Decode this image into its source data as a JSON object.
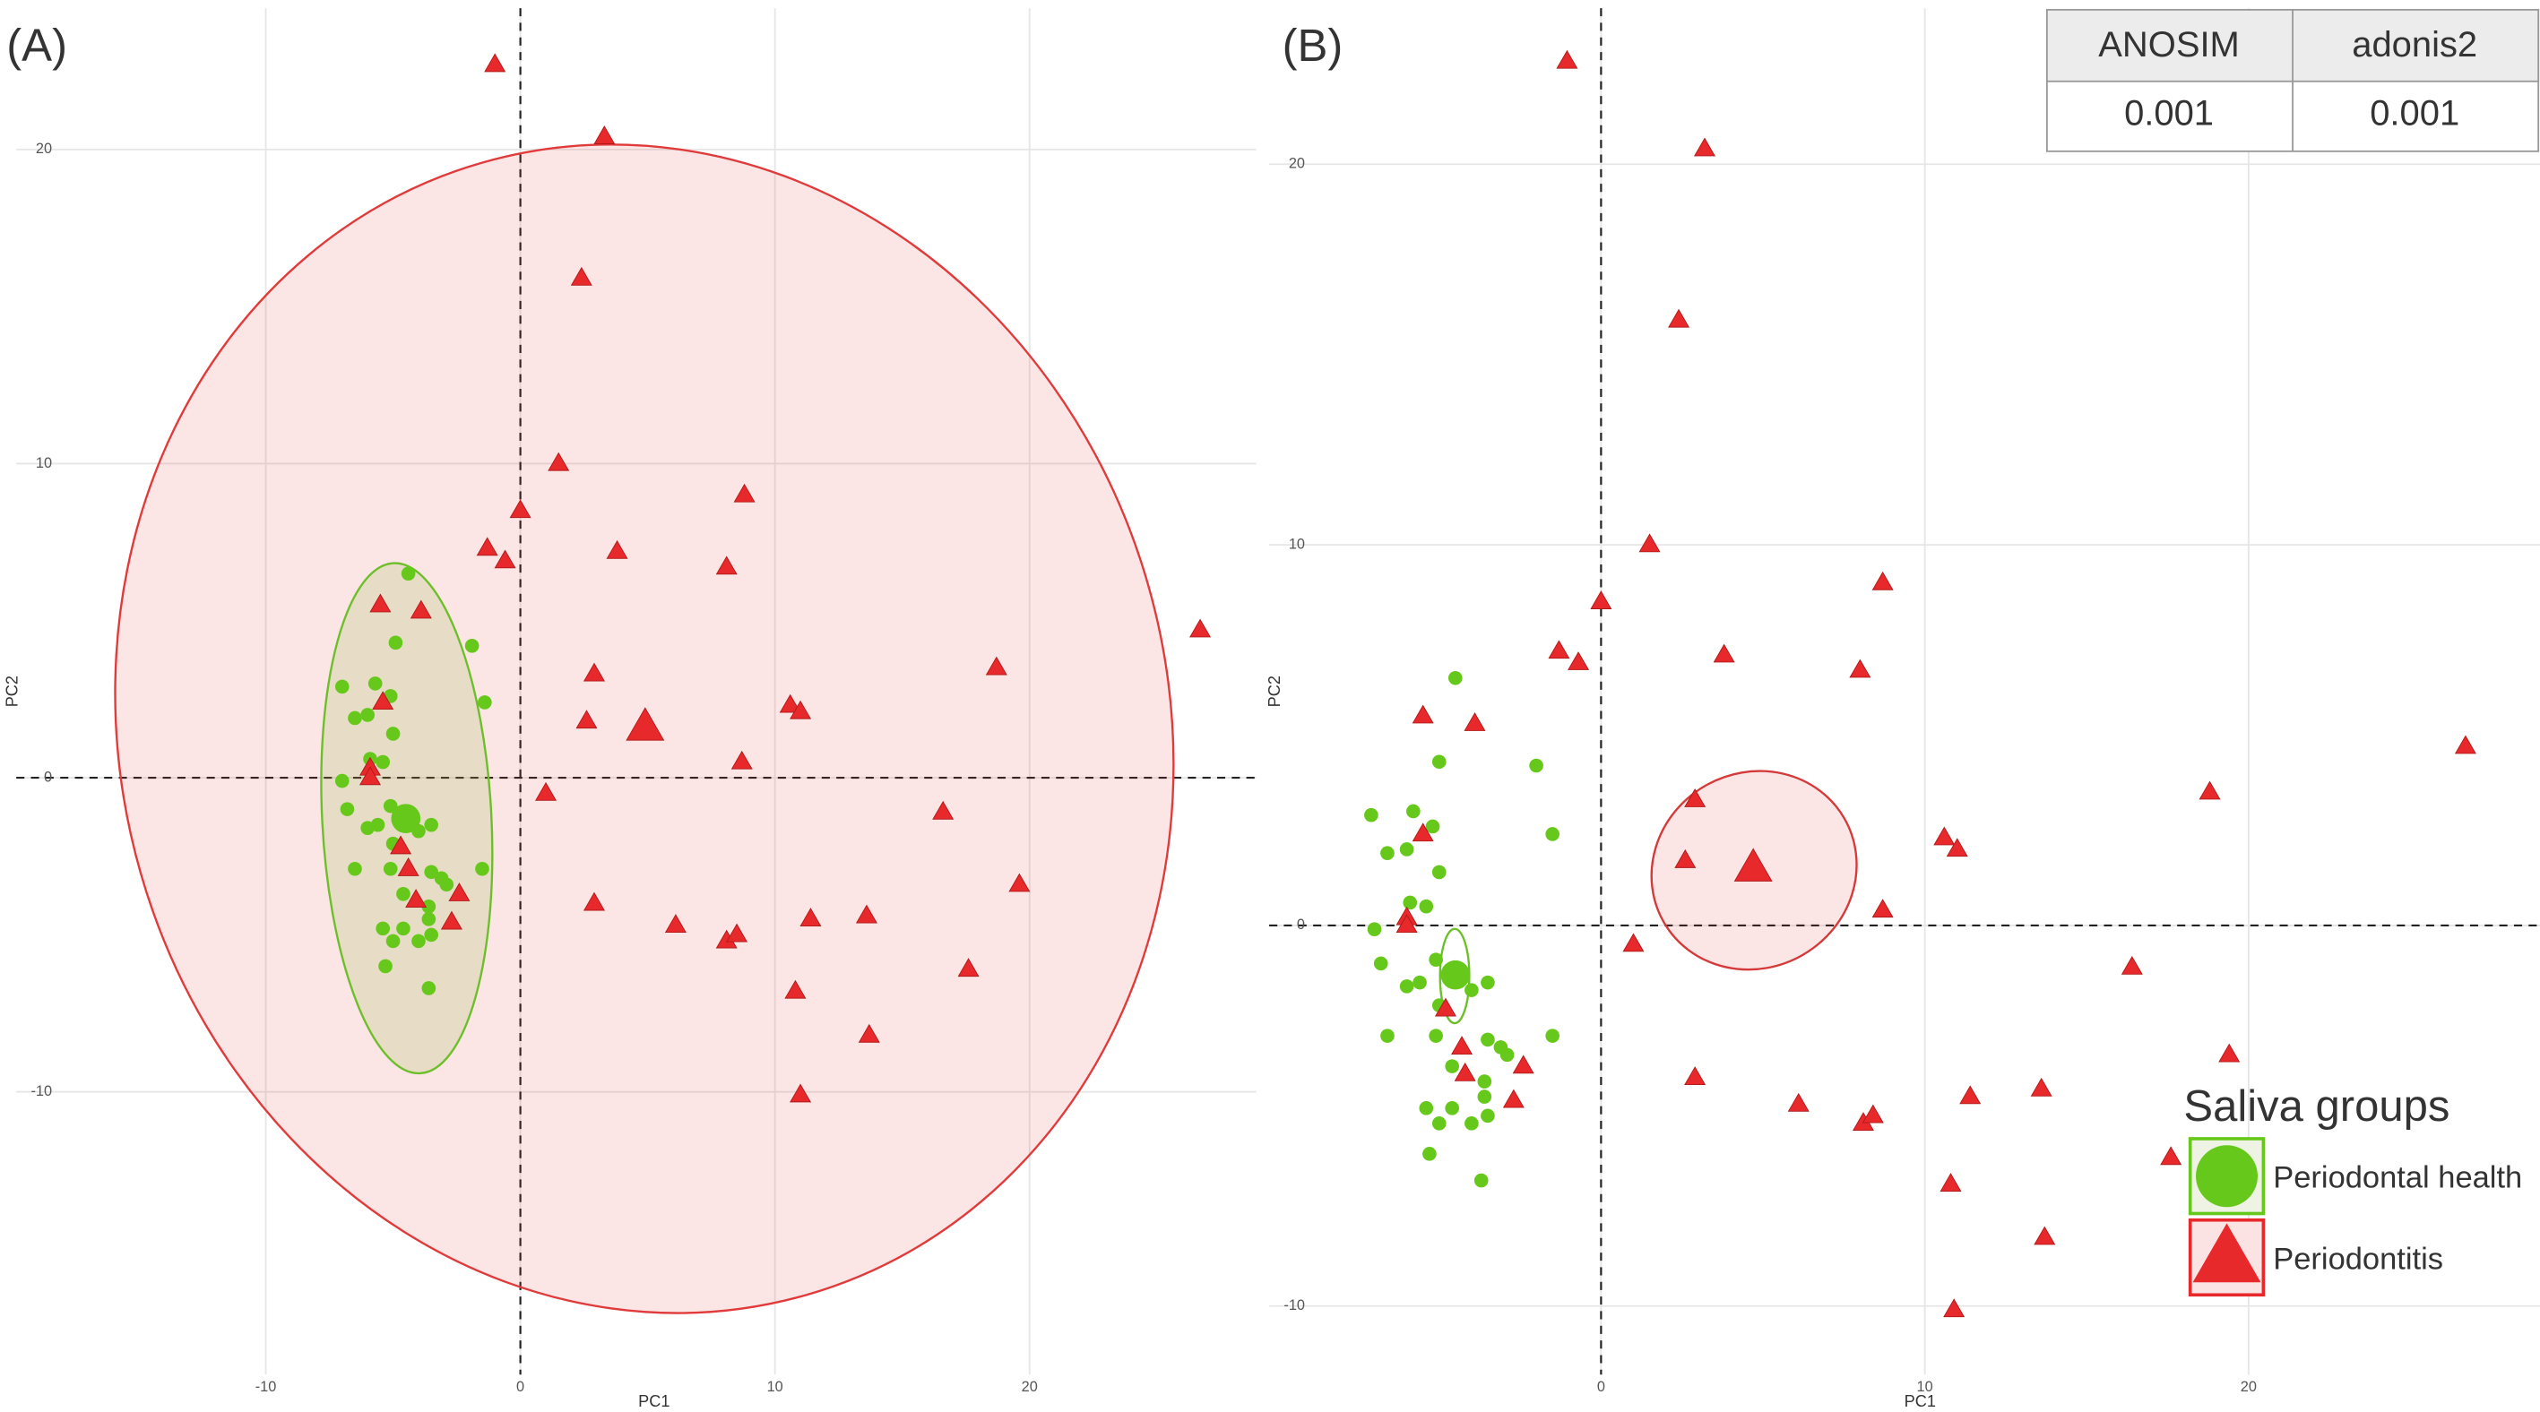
{
  "chart_data": [
    {
      "type": "scatter",
      "panel_label": "(A)",
      "x_label": "PC1",
      "y_label": "PC2",
      "xlim": [
        -19.8,
        28.9
      ],
      "ylim": [
        -19.0,
        24.5
      ],
      "xticks": [
        -10,
        0,
        10,
        20
      ],
      "yticks": [
        -10,
        0,
        10,
        20
      ],
      "grid": true,
      "zero_lines": true,
      "series": [
        {
          "name": "Periodontal health",
          "color": "#66c81a",
          "marker": "circle",
          "x": [
            -4.4,
            -1.9,
            -4.9,
            -1.4,
            -7.0,
            -5.7,
            -5.1,
            -6.5,
            -6.0,
            -5.0,
            -5.9,
            -5.4,
            -7.0,
            -6.8,
            -5.1,
            -6.0,
            -5.6,
            -4.5,
            -4.0,
            -3.5,
            -5.0,
            -6.5,
            -5.1,
            -3.5,
            -3.1,
            -1.5,
            -2.9,
            -4.6,
            -3.6,
            -5.4,
            -4.6,
            -3.6,
            -5.0,
            -4.0,
            -3.5,
            -5.3,
            -3.6
          ],
          "y": [
            6.5,
            4.2,
            4.3,
            2.4,
            2.9,
            3.0,
            2.6,
            1.9,
            2.0,
            1.4,
            0.6,
            0.5,
            -0.1,
            -1.0,
            -0.9,
            -1.6,
            -1.5,
            -1.2,
            -1.7,
            -1.5,
            -2.1,
            -2.9,
            -2.9,
            -3.0,
            -3.2,
            -2.9,
            -3.4,
            -3.7,
            -4.1,
            -4.8,
            -4.8,
            -4.5,
            -5.2,
            -5.2,
            -5.0,
            -6.0,
            -6.7
          ],
          "centroid": {
            "x": -4.5,
            "y": -1.3
          }
        },
        {
          "name": "Periodontitis",
          "color": "#e8292b",
          "marker": "triangle",
          "x": [
            -1.0,
            3.3,
            2.4,
            1.5,
            0.0,
            -1.3,
            -0.6,
            3.8,
            8.8,
            8.1,
            26.7,
            18.7,
            2.9,
            10.6,
            11.0,
            2.6,
            8.7,
            1.0,
            16.6,
            19.6,
            2.9,
            6.1,
            11.4,
            13.6,
            8.1,
            8.5,
            17.6,
            10.8,
            13.7,
            11.0,
            -5.5,
            -3.9,
            -5.4,
            -5.9,
            -5.9,
            -4.7,
            -4.4,
            -2.4,
            -4.1,
            -2.7
          ],
          "y": [
            22.7,
            20.4,
            15.9,
            10.0,
            8.5,
            7.3,
            6.9,
            7.2,
            9.0,
            6.7,
            4.7,
            3.5,
            3.3,
            2.3,
            2.1,
            1.8,
            0.5,
            -0.5,
            -1.1,
            -3.4,
            -4.0,
            -4.7,
            -4.5,
            -4.4,
            -5.2,
            -5.0,
            -6.1,
            -6.8,
            -8.2,
            -10.1,
            5.5,
            5.3,
            2.4,
            0.3,
            0.0,
            -2.2,
            -2.9,
            -3.7,
            -3.9,
            -4.6
          ],
          "centroid": {
            "x": 4.9,
            "y": 1.6
          }
        }
      ]
    },
    {
      "type": "scatter",
      "panel_label": "(B)",
      "x_label": "PC1",
      "y_label": "PC2",
      "xlim": [
        -10.25,
        29.0
      ],
      "ylim": [
        -11.8,
        24.1
      ],
      "xticks": [
        0,
        10,
        20
      ],
      "yticks": [
        -10,
        0,
        10,
        20
      ],
      "grid": true,
      "zero_lines": true,
      "legend": "bottom-right",
      "legend_title": "Saliva groups",
      "series": [
        {
          "name": "Periodontal health",
          "color": "#66c81a",
          "marker": "circle",
          "x": [
            -4.5,
            -2.0,
            -5.0,
            -1.5,
            -7.1,
            -5.8,
            -5.2,
            -6.6,
            -6.0,
            -5.0,
            -5.9,
            -5.4,
            -7.0,
            -6.8,
            -5.1,
            -6.0,
            -5.6,
            -4.5,
            -4.0,
            -3.5,
            -5.0,
            -6.6,
            -5.1,
            -3.5,
            -3.1,
            -1.5,
            -2.9,
            -4.6,
            -3.6,
            -5.4,
            -4.6,
            -3.6,
            -5.0,
            -4.0,
            -3.5,
            -5.3,
            -3.7
          ],
          "y": [
            6.5,
            4.2,
            4.3,
            2.4,
            2.9,
            3.0,
            2.6,
            1.9,
            2.0,
            1.4,
            0.6,
            0.5,
            -0.1,
            -1.0,
            -0.9,
            -1.6,
            -1.5,
            -1.2,
            -1.7,
            -1.5,
            -2.1,
            -2.9,
            -2.9,
            -3.0,
            -3.2,
            -2.9,
            -3.4,
            -3.7,
            -4.1,
            -4.8,
            -4.8,
            -4.5,
            -5.2,
            -5.2,
            -5.0,
            -6.0,
            -6.7
          ],
          "centroid": {
            "x": -4.5,
            "y": -1.3
          }
        },
        {
          "name": "Periodontitis",
          "color": "#e8292b",
          "marker": "triangle",
          "x": [
            -1.05,
            3.2,
            2.4,
            1.5,
            0.0,
            -1.3,
            -0.7,
            3.8,
            8.7,
            8.0,
            26.7,
            18.8,
            2.9,
            10.6,
            11.0,
            2.6,
            8.7,
            1.0,
            16.4,
            19.4,
            2.9,
            6.1,
            11.4,
            13.6,
            8.1,
            8.4,
            17.6,
            10.8,
            13.7,
            10.9,
            -5.5,
            -3.9,
            -5.5,
            -6.0,
            -6.0,
            -4.8,
            -4.3,
            -2.4,
            -4.2,
            -2.7
          ],
          "y": [
            22.7,
            20.4,
            15.9,
            10.0,
            8.5,
            7.2,
            6.9,
            7.1,
            9.0,
            6.7,
            4.7,
            3.5,
            3.3,
            2.3,
            2.0,
            1.7,
            0.4,
            -0.5,
            -1.1,
            -3.4,
            -4.0,
            -4.7,
            -4.5,
            -4.3,
            -5.2,
            -5.0,
            -6.1,
            -6.8,
            -8.2,
            -10.1,
            5.5,
            5.3,
            2.4,
            0.2,
            0.0,
            -2.2,
            -3.2,
            -3.7,
            -3.9,
            -4.6
          ],
          "centroid": {
            "x": 4.7,
            "y": 1.5
          }
        }
      ]
    }
  ],
  "table": {
    "header": [
      "ANOSIM",
      "adonis2"
    ],
    "rows": [
      [
        "0.001",
        "0.001"
      ]
    ]
  }
}
